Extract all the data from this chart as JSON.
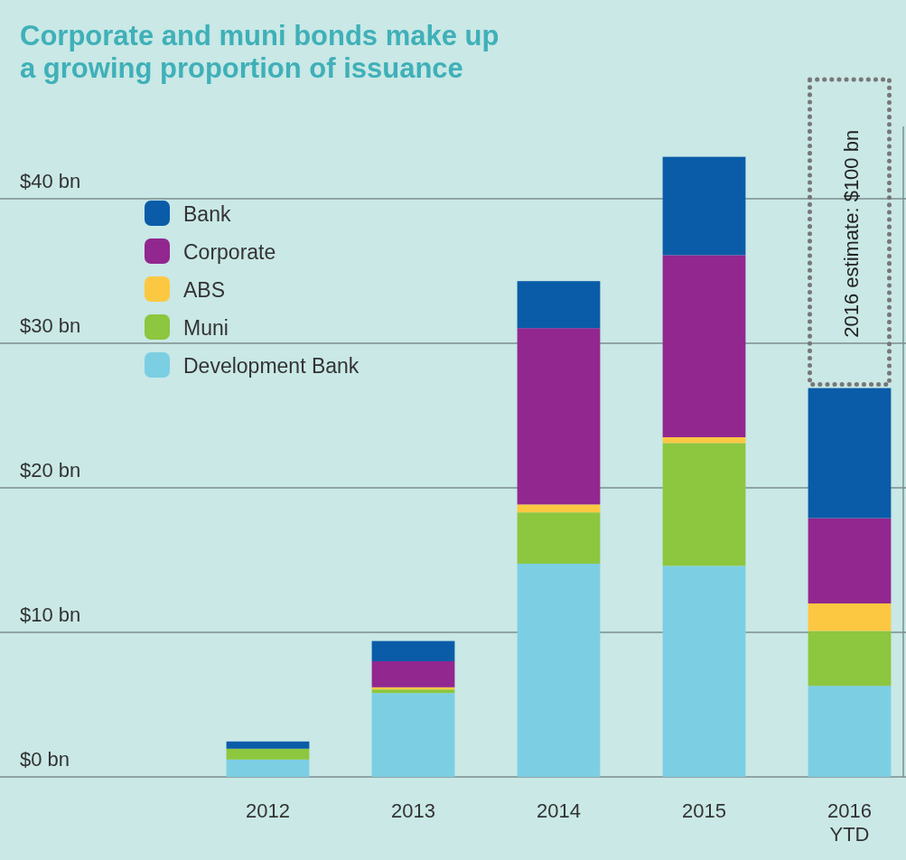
{
  "chart_data": {
    "type": "bar",
    "title": "Corporate and muni bonds make up\na growing proportion of issuance",
    "categories": [
      "2012",
      "2013",
      "2014",
      "2015",
      "2016\nYTD"
    ],
    "stacked": true,
    "series": [
      {
        "name": "Development Bank",
        "color": "#7ccfe3",
        "values": [
          1.2,
          5.8,
          14.75,
          14.6,
          6.3
        ]
      },
      {
        "name": "Muni",
        "color": "#8dc63f",
        "values": [
          0.75,
          0.25,
          3.55,
          8.5,
          3.8
        ]
      },
      {
        "name": "ABS",
        "color": "#fdc841",
        "values": [
          0,
          0.15,
          0.55,
          0.4,
          1.9
        ]
      },
      {
        "name": "Corporate",
        "color": "#92278f",
        "values": [
          0,
          1.8,
          12.2,
          12.6,
          5.9
        ]
      },
      {
        "name": "Bank",
        "color": "#0a5ca8",
        "values": [
          0.5,
          1.4,
          3.25,
          6.8,
          9.0
        ]
      }
    ],
    "ylim": [
      0,
      45
    ],
    "yticks": [
      {
        "value": 0,
        "label": "$0 bn"
      },
      {
        "value": 10,
        "label": "$10 bn"
      },
      {
        "value": 20,
        "label": "$20 bn"
      },
      {
        "value": 30,
        "label": "$30 bn"
      },
      {
        "value": 40,
        "label": "$40 bn"
      }
    ],
    "grid": "y",
    "legend": "top left",
    "annotations": [
      "2016 estimate: $100 bn"
    ]
  }
}
